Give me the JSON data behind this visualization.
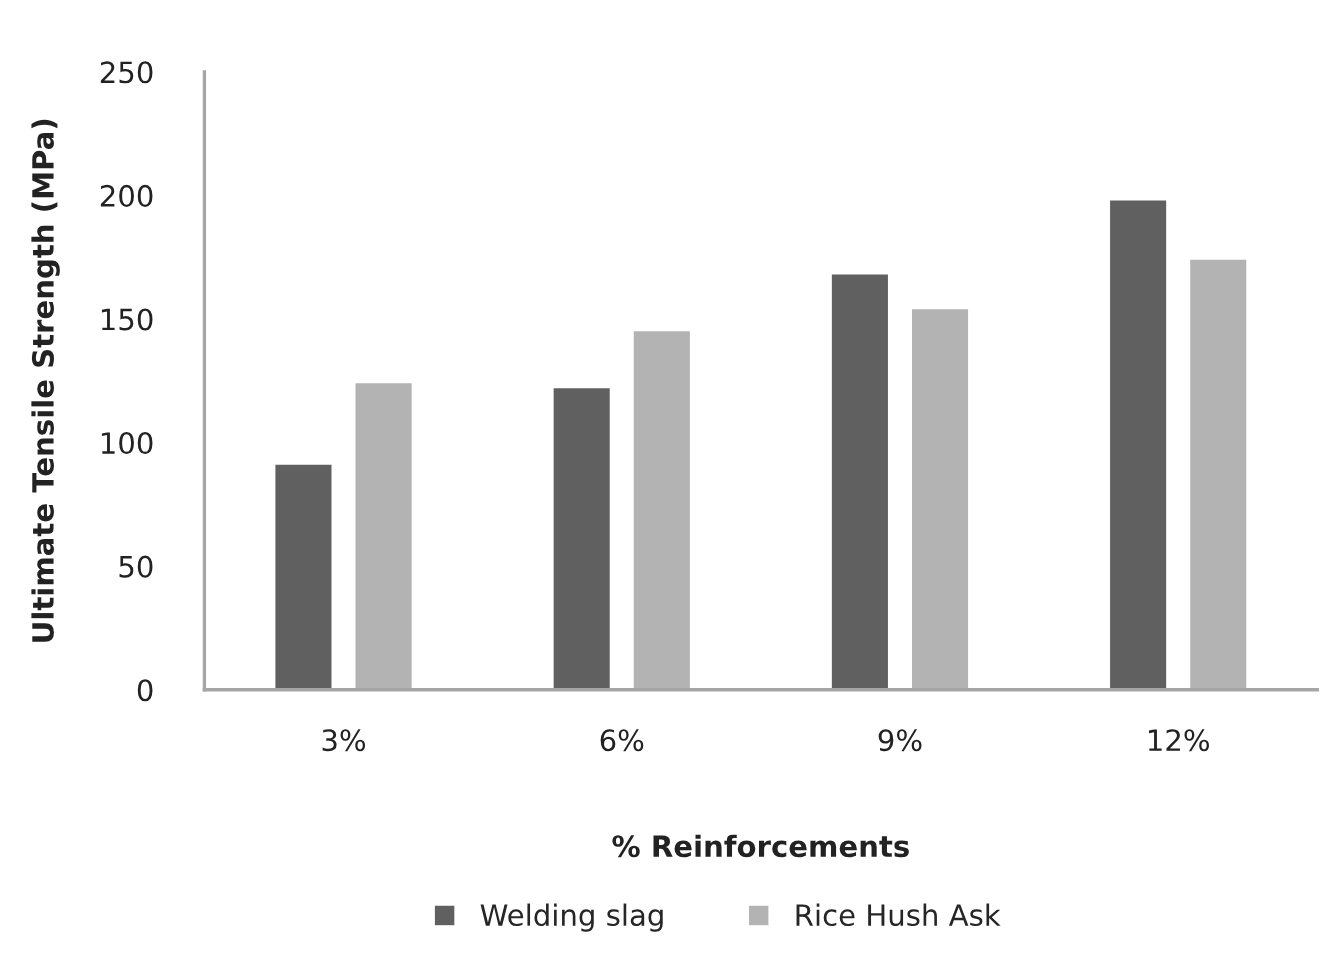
{
  "chart_data": {
    "type": "bar",
    "xlabel": "% Reinforcements",
    "ylabel": "Ultimate Tensile Strength (MPa)",
    "categories": [
      "3%",
      "6%",
      "9%",
      "12%"
    ],
    "series": [
      {
        "name": "Welding slag",
        "color": "#606060",
        "values": [
          91,
          122,
          168,
          198
        ]
      },
      {
        "name": "Rice Hush Ask",
        "color": "#b3b3b3",
        "values": [
          124,
          145,
          154,
          174
        ]
      }
    ],
    "ylim": [
      0,
      250
    ],
    "yticks": [
      0,
      50,
      100,
      150,
      200,
      250
    ],
    "legend": "bottom"
  }
}
